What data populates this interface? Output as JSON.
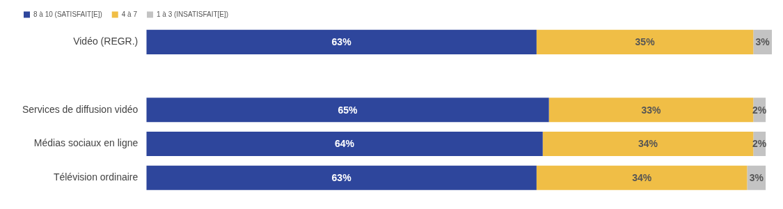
{
  "chart_data": {
    "type": "bar",
    "orientation": "horizontal",
    "stacked": true,
    "data_labels": true,
    "tick_labels": "y",
    "grid": false,
    "legend": "top-left",
    "categories": [
      "Vidéo (REGR.)",
      null,
      "Services de diffusion vidéo",
      "Médias sociaux en ligne",
      "Télévision ordinaire"
    ],
    "series": [
      {
        "name": "8 à 10 (SATISFAIT[E])",
        "color": "#2E469C",
        "values": [
          63,
          null,
          65,
          64,
          63
        ],
        "value_labels": [
          "63%",
          null,
          "65%",
          "64%",
          "63%"
        ]
      },
      {
        "name": "4 à 7",
        "color": "#F0BE46",
        "values": [
          35,
          null,
          33,
          34,
          34
        ],
        "value_labels": [
          "35%",
          null,
          "33%",
          "34%",
          "34%"
        ]
      },
      {
        "name": "1 à 3 (INSATISFAIT[E])",
        "color": "#C3C3C3",
        "values": [
          3,
          null,
          2,
          2,
          3
        ],
        "value_labels": [
          "3%",
          null,
          "2%",
          "2%",
          "3%"
        ]
      }
    ]
  }
}
